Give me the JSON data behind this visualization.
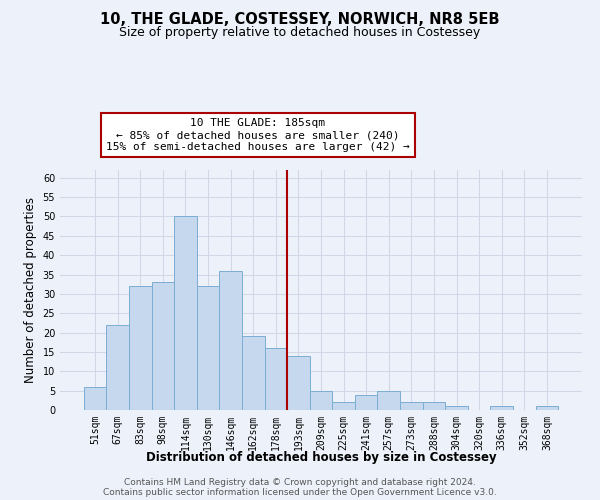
{
  "title": "10, THE GLADE, COSTESSEY, NORWICH, NR8 5EB",
  "subtitle": "Size of property relative to detached houses in Costessey",
  "xlabel": "Distribution of detached houses by size in Costessey",
  "ylabel": "Number of detached properties",
  "bin_labels": [
    "51sqm",
    "67sqm",
    "83sqm",
    "98sqm",
    "114sqm",
    "130sqm",
    "146sqm",
    "162sqm",
    "178sqm",
    "193sqm",
    "209sqm",
    "225sqm",
    "241sqm",
    "257sqm",
    "273sqm",
    "288sqm",
    "304sqm",
    "320sqm",
    "336sqm",
    "352sqm",
    "368sqm"
  ],
  "bar_values": [
    6,
    22,
    32,
    33,
    50,
    32,
    36,
    19,
    16,
    14,
    5,
    2,
    4,
    5,
    2,
    2,
    1,
    0,
    1,
    0,
    1
  ],
  "bar_color": "#c5d8ee",
  "bar_edge_color": "#7badd4",
  "vline_x": 8.5,
  "vline_color": "#aa0000",
  "annotation_line1": "10 THE GLADE: 185sqm",
  "annotation_line2": "← 85% of detached houses are smaller (240)",
  "annotation_line3": "15% of semi-detached houses are larger (42) →",
  "annotation_box_color": "#ffffff",
  "annotation_box_edge": "#aa0000",
  "ylim": [
    0,
    62
  ],
  "yticks": [
    0,
    5,
    10,
    15,
    20,
    25,
    30,
    35,
    40,
    45,
    50,
    55,
    60
  ],
  "footer_line1": "Contains HM Land Registry data © Crown copyright and database right 2024.",
  "footer_line2": "Contains public sector information licensed under the Open Government Licence v3.0.",
  "background_color": "#edf2fa",
  "grid_color": "#d0d8e8",
  "title_fontsize": 10.5,
  "subtitle_fontsize": 9,
  "axis_label_fontsize": 8.5,
  "tick_fontsize": 7,
  "annotation_fontsize": 8,
  "footer_fontsize": 6.5
}
